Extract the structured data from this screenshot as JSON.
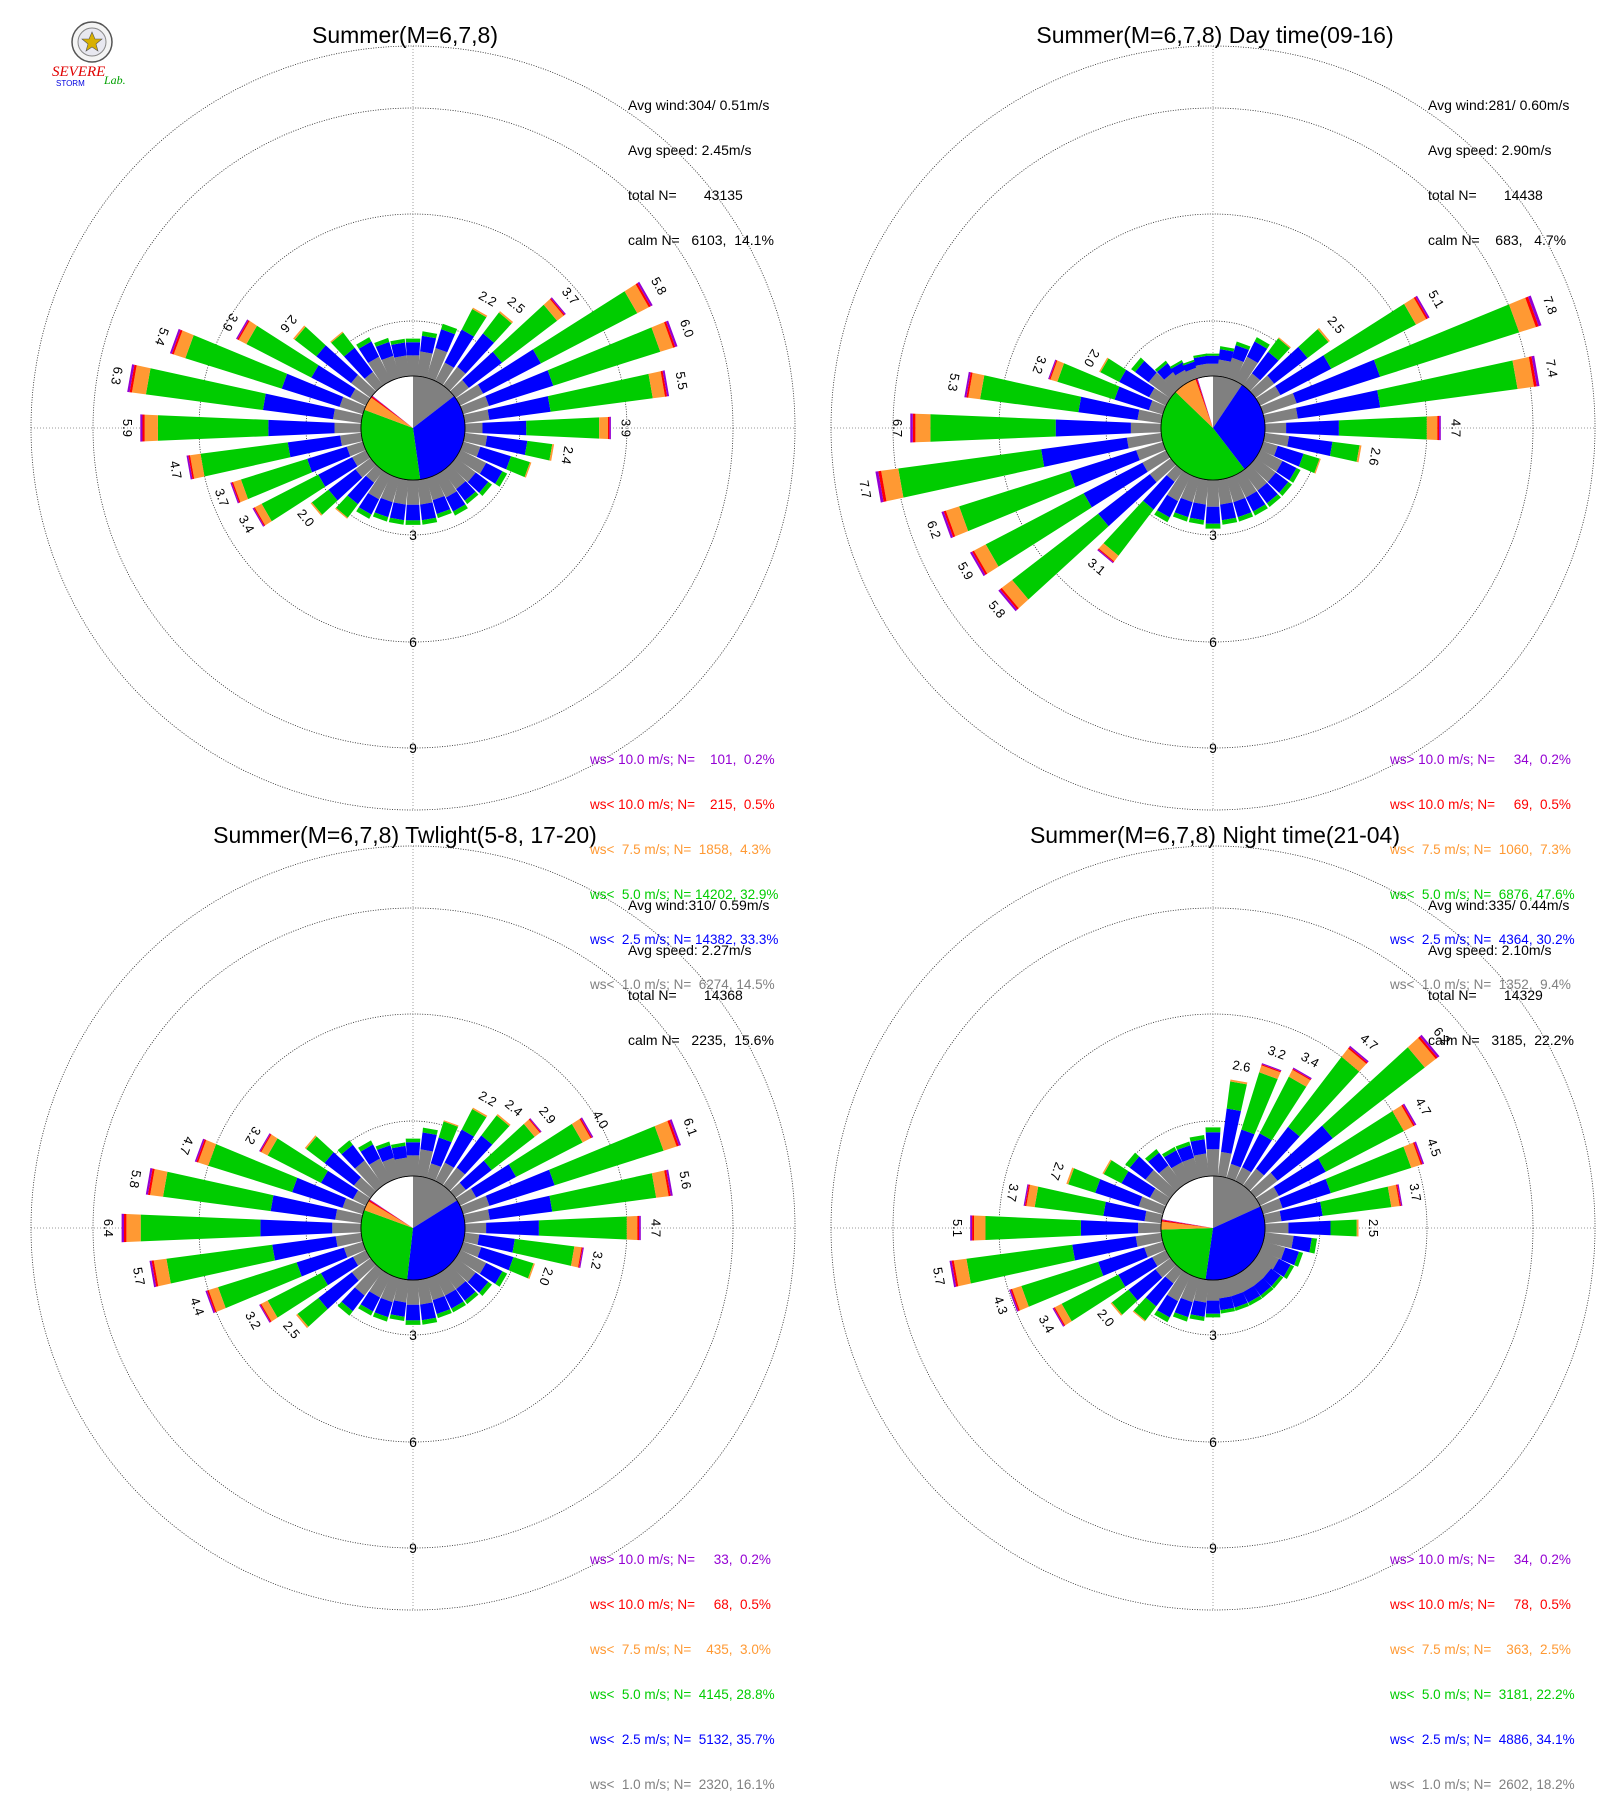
{
  "logo": {
    "word1": "SEVERE",
    "word2": "STORM",
    "word3": "Lab.",
    "colors": [
      "#e00000",
      "#0000e0",
      "#00a000"
    ]
  },
  "colors": {
    "ws_gt_10": "#9400d3",
    "ws_lt_10": "#ff0000",
    "ws_lt_7_5": "#ff9933",
    "ws_lt_5": "#00cc00",
    "ws_lt_2_5": "#0000ff",
    "ws_lt_1": "#808080"
  },
  "axis": {
    "ring_labels": [
      "3",
      "6",
      "9"
    ],
    "rings": [
      3,
      6,
      9
    ]
  },
  "chart_data": [
    {
      "type": "wind-rose",
      "title": "Summer(M=6,7,8)",
      "stats": [
        "Avg wind:304/ 0.51m/s",
        "Avg speed: 2.45m/s",
        "total N=       43135",
        "calm N=   6103,  14.1%"
      ],
      "legend": [
        {
          "text": "ws> 10.0 m/s; N=    101,  0.2%",
          "key": "ws_gt_10"
        },
        {
          "text": "ws< 10.0 m/s; N=    215,  0.5%",
          "key": "ws_lt_10"
        },
        {
          "text": "ws<  7.5 m/s; N=  1858,  4.3%",
          "key": "ws_lt_7_5"
        },
        {
          "text": "ws<  5.0 m/s; N= 14202, 32.9%",
          "key": "ws_lt_5"
        },
        {
          "text": "ws<  2.5 m/s; N= 14382, 33.3%",
          "key": "ws_lt_2_5"
        },
        {
          "text": "ws<  1.0 m/s; N=  6274, 14.5%",
          "key": "ws_lt_1"
        }
      ],
      "pie": [
        14.5,
        33.3,
        32.9,
        4.3,
        0.5,
        0.2
      ],
      "sectors": [
        {
          "dir": 0,
          "total": 1.0,
          "label": ""
        },
        {
          "dir": 10,
          "total": 1.2,
          "label": ""
        },
        {
          "dir": 20,
          "total": 1.5,
          "label": ""
        },
        {
          "dir": 30,
          "total": 2.2,
          "label": "2.2"
        },
        {
          "dir": 40,
          "total": 2.5,
          "label": "2.5"
        },
        {
          "dir": 50,
          "total": 3.7,
          "label": "3.7"
        },
        {
          "dir": 60,
          "total": 5.8,
          "label": "5.8"
        },
        {
          "dir": 70,
          "total": 6.0,
          "label": "6.0"
        },
        {
          "dir": 80,
          "total": 5.5,
          "label": "5.5"
        },
        {
          "dir": 90,
          "total": 3.9,
          "label": "3.9"
        },
        {
          "dir": 100,
          "total": 2.4,
          "label": "2.4"
        },
        {
          "dir": 110,
          "total": 1.9,
          "label": ""
        },
        {
          "dir": 120,
          "total": 1.4,
          "label": ""
        },
        {
          "dir": 130,
          "total": 1.2,
          "label": ""
        },
        {
          "dir": 140,
          "total": 1.1,
          "label": ""
        },
        {
          "dir": 150,
          "total": 1.2,
          "label": ""
        },
        {
          "dir": 160,
          "total": 1.1,
          "label": ""
        },
        {
          "dir": 170,
          "total": 1.2,
          "label": ""
        },
        {
          "dir": 180,
          "total": 1.2,
          "label": ""
        },
        {
          "dir": 190,
          "total": 1.2,
          "label": ""
        },
        {
          "dir": 200,
          "total": 1.2,
          "label": ""
        },
        {
          "dir": 210,
          "total": 1.3,
          "label": ""
        },
        {
          "dir": 220,
          "total": 1.6,
          "label": ""
        },
        {
          "dir": 230,
          "total": 2.0,
          "label": "2.0"
        },
        {
          "dir": 240,
          "total": 3.4,
          "label": "3.4"
        },
        {
          "dir": 250,
          "total": 3.7,
          "label": "3.7"
        },
        {
          "dir": 260,
          "total": 4.7,
          "label": "4.7"
        },
        {
          "dir": 270,
          "total": 5.9,
          "label": "5.9"
        },
        {
          "dir": 280,
          "total": 6.3,
          "label": "6.3"
        },
        {
          "dir": 290,
          "total": 5.4,
          "label": "5.4"
        },
        {
          "dir": 300,
          "total": 3.9,
          "label": "3.9"
        },
        {
          "dir": 310,
          "total": 2.6,
          "label": "2.6"
        },
        {
          "dir": 320,
          "total": 1.8,
          "label": ""
        },
        {
          "dir": 330,
          "total": 1.3,
          "label": ""
        },
        {
          "dir": 340,
          "total": 1.1,
          "label": ""
        },
        {
          "dir": 350,
          "total": 1.0,
          "label": ""
        }
      ]
    },
    {
      "type": "wind-rose",
      "title": "Summer(M=6,7,8) Day time(09-16)",
      "stats": [
        "Avg wind:281/ 0.60m/s",
        "Avg speed: 2.90m/s",
        "total N=       14438",
        "calm N=    683,   4.7%"
      ],
      "legend": [
        {
          "text": "ws> 10.0 m/s; N=     34,  0.2%",
          "key": "ws_gt_10"
        },
        {
          "text": "ws< 10.0 m/s; N=     69,  0.5%",
          "key": "ws_lt_10"
        },
        {
          "text": "ws<  7.5 m/s; N=  1060,  7.3%",
          "key": "ws_lt_7_5"
        },
        {
          "text": "ws<  5.0 m/s; N=  6876, 47.6%",
          "key": "ws_lt_5"
        },
        {
          "text": "ws<  2.5 m/s; N=  4364, 30.2%",
          "key": "ws_lt_2_5"
        },
        {
          "text": "ws<  1.0 m/s; N=  1352,  9.4%",
          "key": "ws_lt_1"
        }
      ],
      "pie": [
        9.4,
        30.2,
        47.6,
        7.3,
        0.5,
        0.2
      ],
      "sectors": [
        {
          "dir": 0,
          "total": 0.6,
          "label": ""
        },
        {
          "dir": 10,
          "total": 0.8,
          "label": ""
        },
        {
          "dir": 20,
          "total": 1.0,
          "label": ""
        },
        {
          "dir": 30,
          "total": 1.3,
          "label": ""
        },
        {
          "dir": 40,
          "total": 1.6,
          "label": ""
        },
        {
          "dir": 50,
          "total": 2.5,
          "label": "2.5"
        },
        {
          "dir": 60,
          "total": 5.1,
          "label": "5.1"
        },
        {
          "dir": 70,
          "total": 7.8,
          "label": "7.8"
        },
        {
          "dir": 80,
          "total": 7.4,
          "label": "7.4"
        },
        {
          "dir": 90,
          "total": 4.7,
          "label": "4.7"
        },
        {
          "dir": 100,
          "total": 2.6,
          "label": "2.6"
        },
        {
          "dir": 110,
          "total": 1.6,
          "label": ""
        },
        {
          "dir": 120,
          "total": 1.2,
          "label": ""
        },
        {
          "dir": 130,
          "total": 1.2,
          "label": ""
        },
        {
          "dir": 140,
          "total": 1.2,
          "label": ""
        },
        {
          "dir": 150,
          "total": 1.2,
          "label": ""
        },
        {
          "dir": 160,
          "total": 1.2,
          "label": ""
        },
        {
          "dir": 170,
          "total": 1.2,
          "label": ""
        },
        {
          "dir": 180,
          "total": 1.3,
          "label": ""
        },
        {
          "dir": 190,
          "total": 1.2,
          "label": ""
        },
        {
          "dir": 200,
          "total": 1.2,
          "label": ""
        },
        {
          "dir": 210,
          "total": 1.4,
          "label": ""
        },
        {
          "dir": 220,
          "total": 3.1,
          "label": "3.1"
        },
        {
          "dir": 230,
          "total": 5.8,
          "label": "5.8"
        },
        {
          "dir": 240,
          "total": 5.9,
          "label": "5.9"
        },
        {
          "dir": 250,
          "total": 6.2,
          "label": "6.2"
        },
        {
          "dir": 260,
          "total": 7.7,
          "label": "7.7"
        },
        {
          "dir": 270,
          "total": 6.7,
          "label": "6.7"
        },
        {
          "dir": 280,
          "total": 5.3,
          "label": "5.3"
        },
        {
          "dir": 290,
          "total": 3.2,
          "label": "3.2"
        },
        {
          "dir": 300,
          "total": 2.0,
          "label": "2.0"
        },
        {
          "dir": 310,
          "total": 1.3,
          "label": ""
        },
        {
          "dir": 320,
          "total": 0.8,
          "label": ""
        },
        {
          "dir": 330,
          "total": 0.6,
          "label": ""
        },
        {
          "dir": 340,
          "total": 0.5,
          "label": ""
        },
        {
          "dir": 350,
          "total": 0.6,
          "label": ""
        }
      ]
    },
    {
      "type": "wind-rose",
      "title": "Summer(M=6,7,8) Twlight(5-8, 17-20)",
      "stats": [
        "Avg wind:310/ 0.59m/s",
        "Avg speed: 2.27m/s",
        "total N=       14368",
        "calm N=   2235,  15.6%"
      ],
      "legend": [
        {
          "text": "ws> 10.0 m/s; N=     33,  0.2%",
          "key": "ws_gt_10"
        },
        {
          "text": "ws< 10.0 m/s; N=     68,  0.5%",
          "key": "ws_lt_10"
        },
        {
          "text": "ws<  7.5 m/s; N=    435,  3.0%",
          "key": "ws_lt_7_5"
        },
        {
          "text": "ws<  5.0 m/s; N=  4145, 28.8%",
          "key": "ws_lt_5"
        },
        {
          "text": "ws<  2.5 m/s; N=  5132, 35.7%",
          "key": "ws_lt_2_5"
        },
        {
          "text": "ws<  1.0 m/s; N=  2320, 16.1%",
          "key": "ws_lt_1"
        }
      ],
      "pie": [
        16.1,
        35.7,
        28.8,
        3.0,
        0.5,
        0.2
      ],
      "sectors": [
        {
          "dir": 0,
          "total": 1.0,
          "label": ""
        },
        {
          "dir": 10,
          "total": 1.3,
          "label": ""
        },
        {
          "dir": 20,
          "total": 1.6,
          "label": ""
        },
        {
          "dir": 30,
          "total": 2.2,
          "label": "2.2"
        },
        {
          "dir": 40,
          "total": 2.4,
          "label": "2.4"
        },
        {
          "dir": 50,
          "total": 2.9,
          "label": "2.9"
        },
        {
          "dir": 60,
          "total": 4.0,
          "label": "4.0"
        },
        {
          "dir": 70,
          "total": 6.1,
          "label": "6.1"
        },
        {
          "dir": 80,
          "total": 5.6,
          "label": "5.6"
        },
        {
          "dir": 90,
          "total": 4.7,
          "label": "4.7"
        },
        {
          "dir": 100,
          "total": 3.2,
          "label": "3.2"
        },
        {
          "dir": 110,
          "total": 2.0,
          "label": "2.0"
        },
        {
          "dir": 120,
          "total": 1.4,
          "label": ""
        },
        {
          "dir": 130,
          "total": 1.2,
          "label": ""
        },
        {
          "dir": 140,
          "total": 1.1,
          "label": ""
        },
        {
          "dir": 150,
          "total": 1.1,
          "label": ""
        },
        {
          "dir": 160,
          "total": 1.1,
          "label": ""
        },
        {
          "dir": 170,
          "total": 1.2,
          "label": ""
        },
        {
          "dir": 180,
          "total": 1.2,
          "label": ""
        },
        {
          "dir": 190,
          "total": 1.1,
          "label": ""
        },
        {
          "dir": 200,
          "total": 1.2,
          "label": ""
        },
        {
          "dir": 210,
          "total": 1.2,
          "label": ""
        },
        {
          "dir": 220,
          "total": 1.5,
          "label": ""
        },
        {
          "dir": 230,
          "total": 2.5,
          "label": "2.5"
        },
        {
          "dir": 240,
          "total": 3.2,
          "label": "3.2"
        },
        {
          "dir": 250,
          "total": 4.4,
          "label": "4.4"
        },
        {
          "dir": 260,
          "total": 5.7,
          "label": "5.7"
        },
        {
          "dir": 270,
          "total": 6.4,
          "label": "6.4"
        },
        {
          "dir": 280,
          "total": 5.8,
          "label": "5.8"
        },
        {
          "dir": 290,
          "total": 4.7,
          "label": "4.7"
        },
        {
          "dir": 300,
          "total": 3.2,
          "label": "3.2"
        },
        {
          "dir": 310,
          "total": 2.2,
          "label": ""
        },
        {
          "dir": 320,
          "total": 1.5,
          "label": ""
        },
        {
          "dir": 330,
          "total": 1.2,
          "label": ""
        },
        {
          "dir": 340,
          "total": 1.0,
          "label": ""
        },
        {
          "dir": 350,
          "total": 0.9,
          "label": ""
        }
      ]
    },
    {
      "type": "wind-rose",
      "title": "Summer(M=6,7,8) Night time(21-04)",
      "stats": [
        "Avg wind:335/ 0.44m/s",
        "Avg speed: 2.10m/s",
        "total N=       14329",
        "calm N=   3185,  22.2%"
      ],
      "legend": [
        {
          "text": "ws> 10.0 m/s; N=     34,  0.2%",
          "key": "ws_gt_10"
        },
        {
          "text": "ws< 10.0 m/s; N=     78,  0.5%",
          "key": "ws_lt_10"
        },
        {
          "text": "ws<  7.5 m/s; N=    363,  2.5%",
          "key": "ws_lt_7_5"
        },
        {
          "text": "ws<  5.0 m/s; N=  3181, 22.2%",
          "key": "ws_lt_5"
        },
        {
          "text": "ws<  2.5 m/s; N=  4886, 34.1%",
          "key": "ws_lt_2_5"
        },
        {
          "text": "ws<  1.0 m/s; N=  2602, 18.2%",
          "key": "ws_lt_1"
        }
      ],
      "pie": [
        18.2,
        34.1,
        22.2,
        2.5,
        0.5,
        0.2
      ],
      "sectors": [
        {
          "dir": 0,
          "total": 1.3,
          "label": ""
        },
        {
          "dir": 10,
          "total": 2.6,
          "label": "2.6"
        },
        {
          "dir": 20,
          "total": 3.2,
          "label": "3.2"
        },
        {
          "dir": 30,
          "total": 3.4,
          "label": "3.4"
        },
        {
          "dir": 40,
          "total": 4.7,
          "label": "4.7"
        },
        {
          "dir": 50,
          "total": 6.2,
          "label": "6.2"
        },
        {
          "dir": 60,
          "total": 4.7,
          "label": "4.7"
        },
        {
          "dir": 70,
          "total": 4.5,
          "label": "4.5"
        },
        {
          "dir": 80,
          "total": 3.7,
          "label": "3.7"
        },
        {
          "dir": 90,
          "total": 2.5,
          "label": "2.5"
        },
        {
          "dir": 100,
          "total": 1.4,
          "label": ""
        },
        {
          "dir": 110,
          "total": 1.1,
          "label": ""
        },
        {
          "dir": 120,
          "total": 1.0,
          "label": ""
        },
        {
          "dir": 130,
          "total": 0.9,
          "label": ""
        },
        {
          "dir": 140,
          "total": 0.9,
          "label": ""
        },
        {
          "dir": 150,
          "total": 0.9,
          "label": ""
        },
        {
          "dir": 160,
          "total": 0.9,
          "label": ""
        },
        {
          "dir": 170,
          "total": 0.9,
          "label": ""
        },
        {
          "dir": 180,
          "total": 1.0,
          "label": ""
        },
        {
          "dir": 190,
          "total": 1.1,
          "label": ""
        },
        {
          "dir": 200,
          "total": 1.2,
          "label": ""
        },
        {
          "dir": 210,
          "total": 1.4,
          "label": ""
        },
        {
          "dir": 220,
          "total": 1.7,
          "label": ""
        },
        {
          "dir": 230,
          "total": 2.0,
          "label": "2.0"
        },
        {
          "dir": 240,
          "total": 3.4,
          "label": "3.4"
        },
        {
          "dir": 250,
          "total": 4.3,
          "label": "4.3"
        },
        {
          "dir": 260,
          "total": 5.7,
          "label": "5.7"
        },
        {
          "dir": 270,
          "total": 5.1,
          "label": "5.1"
        },
        {
          "dir": 280,
          "total": 3.7,
          "label": "3.7"
        },
        {
          "dir": 290,
          "total": 2.7,
          "label": "2.7"
        },
        {
          "dir": 300,
          "total": 1.9,
          "label": ""
        },
        {
          "dir": 310,
          "total": 1.5,
          "label": ""
        },
        {
          "dir": 320,
          "total": 1.2,
          "label": ""
        },
        {
          "dir": 330,
          "total": 1.0,
          "label": ""
        },
        {
          "dir": 340,
          "total": 1.0,
          "label": ""
        },
        {
          "dir": 350,
          "total": 1.1,
          "label": ""
        }
      ]
    }
  ]
}
